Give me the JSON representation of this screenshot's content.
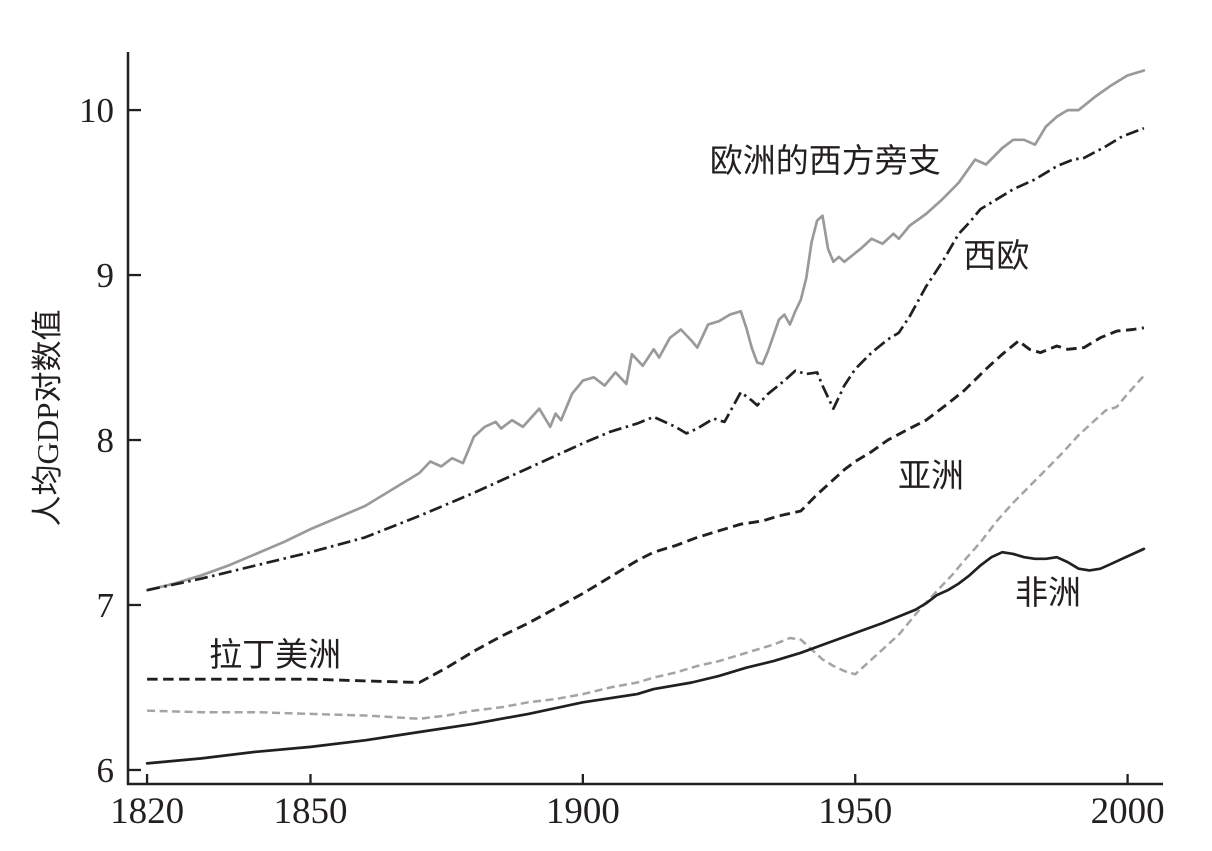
{
  "figure": {
    "background": "#ffffff",
    "ink_color": "#231f20",
    "gray_solid_color": "#9a9a9a",
    "gray_dashed_color": "#a4a4a4"
  },
  "chart_data": {
    "type": "line",
    "title": "",
    "xlabel": "",
    "ylabel": "人均GDP对数值",
    "x_range": [
      1816.5,
      2006.5
    ],
    "y_range": [
      5.915,
      10.352
    ],
    "xticks": [
      1820,
      1850,
      1900,
      1950,
      2000
    ],
    "yticks": [
      6,
      7,
      8,
      9,
      10
    ],
    "grid": false,
    "legend": "inline-labels",
    "series": [
      {
        "id": "western-offshoots",
        "name": "欧洲的西方旁支",
        "color": "#9a9a9a",
        "style": "solid",
        "width": 2.7,
        "points": [
          [
            1820,
            7.09
          ],
          [
            1825,
            7.13
          ],
          [
            1830,
            7.18
          ],
          [
            1835,
            7.24
          ],
          [
            1840,
            7.31
          ],
          [
            1845,
            7.38
          ],
          [
            1850,
            7.46
          ],
          [
            1855,
            7.53
          ],
          [
            1860,
            7.6
          ],
          [
            1865,
            7.7
          ],
          [
            1870,
            7.8
          ],
          [
            1872,
            7.87
          ],
          [
            1874,
            7.84
          ],
          [
            1876,
            7.89
          ],
          [
            1878,
            7.86
          ],
          [
            1880,
            8.02
          ],
          [
            1882,
            8.08
          ],
          [
            1884,
            8.11
          ],
          [
            1885,
            8.07
          ],
          [
            1887,
            8.12
          ],
          [
            1889,
            8.08
          ],
          [
            1892,
            8.19
          ],
          [
            1894,
            8.08
          ],
          [
            1895,
            8.16
          ],
          [
            1896,
            8.12
          ],
          [
            1898,
            8.28
          ],
          [
            1900,
            8.36
          ],
          [
            1902,
            8.38
          ],
          [
            1904,
            8.33
          ],
          [
            1906,
            8.41
          ],
          [
            1908,
            8.34
          ],
          [
            1909,
            8.52
          ],
          [
            1911,
            8.45
          ],
          [
            1913,
            8.55
          ],
          [
            1914,
            8.5
          ],
          [
            1916,
            8.62
          ],
          [
            1918,
            8.67
          ],
          [
            1920,
            8.6
          ],
          [
            1921,
            8.56
          ],
          [
            1923,
            8.7
          ],
          [
            1925,
            8.72
          ],
          [
            1927,
            8.76
          ],
          [
            1929,
            8.78
          ],
          [
            1930,
            8.68
          ],
          [
            1931,
            8.56
          ],
          [
            1932,
            8.47
          ],
          [
            1933,
            8.46
          ],
          [
            1934,
            8.54
          ],
          [
            1936,
            8.73
          ],
          [
            1937,
            8.76
          ],
          [
            1938,
            8.7
          ],
          [
            1939,
            8.78
          ],
          [
            1940,
            8.85
          ],
          [
            1941,
            8.98
          ],
          [
            1942,
            9.2
          ],
          [
            1943,
            9.33
          ],
          [
            1944,
            9.36
          ],
          [
            1945,
            9.16
          ],
          [
            1946,
            9.08
          ],
          [
            1947,
            9.11
          ],
          [
            1948,
            9.08
          ],
          [
            1951,
            9.16
          ],
          [
            1953,
            9.22
          ],
          [
            1955,
            9.19
          ],
          [
            1957,
            9.25
          ],
          [
            1958,
            9.22
          ],
          [
            1960,
            9.3
          ],
          [
            1963,
            9.37
          ],
          [
            1966,
            9.46
          ],
          [
            1969,
            9.56
          ],
          [
            1972,
            9.7
          ],
          [
            1974,
            9.67
          ],
          [
            1977,
            9.77
          ],
          [
            1979,
            9.82
          ],
          [
            1981,
            9.82
          ],
          [
            1983,
            9.79
          ],
          [
            1985,
            9.9
          ],
          [
            1987,
            9.96
          ],
          [
            1989,
            10.0
          ],
          [
            1991,
            10.0
          ],
          [
            1994,
            10.08
          ],
          [
            1997,
            10.15
          ],
          [
            2000,
            10.21
          ],
          [
            2003,
            10.24
          ]
        ]
      },
      {
        "id": "western-europe",
        "name": "西欧",
        "color": "#231f20",
        "style": "dashdot",
        "width": 2.7,
        "points": [
          [
            1820,
            7.09
          ],
          [
            1830,
            7.16
          ],
          [
            1840,
            7.24
          ],
          [
            1850,
            7.32
          ],
          [
            1860,
            7.41
          ],
          [
            1870,
            7.54
          ],
          [
            1880,
            7.68
          ],
          [
            1890,
            7.83
          ],
          [
            1900,
            7.98
          ],
          [
            1905,
            8.05
          ],
          [
            1910,
            8.1
          ],
          [
            1913,
            8.14
          ],
          [
            1917,
            8.08
          ],
          [
            1919,
            8.04
          ],
          [
            1921,
            8.07
          ],
          [
            1924,
            8.13
          ],
          [
            1926,
            8.11
          ],
          [
            1929,
            8.29
          ],
          [
            1931,
            8.24
          ],
          [
            1932,
            8.21
          ],
          [
            1934,
            8.28
          ],
          [
            1937,
            8.36
          ],
          [
            1939,
            8.42
          ],
          [
            1941,
            8.4
          ],
          [
            1943,
            8.41
          ],
          [
            1944,
            8.33
          ],
          [
            1946,
            8.19
          ],
          [
            1948,
            8.33
          ],
          [
            1950,
            8.43
          ],
          [
            1953,
            8.53
          ],
          [
            1956,
            8.61
          ],
          [
            1958,
            8.65
          ],
          [
            1960,
            8.75
          ],
          [
            1963,
            8.93
          ],
          [
            1966,
            9.08
          ],
          [
            1969,
            9.25
          ],
          [
            1971,
            9.32
          ],
          [
            1973,
            9.4
          ],
          [
            1976,
            9.46
          ],
          [
            1979,
            9.52
          ],
          [
            1983,
            9.58
          ],
          [
            1987,
            9.66
          ],
          [
            1990,
            9.7
          ],
          [
            1992,
            9.71
          ],
          [
            1996,
            9.78
          ],
          [
            1999,
            9.84
          ],
          [
            2003,
            9.89
          ]
        ]
      },
      {
        "id": "latin-america",
        "name": "拉丁美洲",
        "color": "#231f20",
        "style": "dashed",
        "width": 2.9,
        "points": [
          [
            1820,
            6.55
          ],
          [
            1835,
            6.55
          ],
          [
            1850,
            6.55
          ],
          [
            1860,
            6.54
          ],
          [
            1870,
            6.53
          ],
          [
            1875,
            6.62
          ],
          [
            1880,
            6.72
          ],
          [
            1885,
            6.81
          ],
          [
            1890,
            6.89
          ],
          [
            1895,
            6.98
          ],
          [
            1900,
            7.07
          ],
          [
            1905,
            7.17
          ],
          [
            1910,
            7.27
          ],
          [
            1913,
            7.32
          ],
          [
            1917,
            7.36
          ],
          [
            1921,
            7.41
          ],
          [
            1925,
            7.45
          ],
          [
            1929,
            7.49
          ],
          [
            1933,
            7.51
          ],
          [
            1936,
            7.54
          ],
          [
            1940,
            7.57
          ],
          [
            1943,
            7.67
          ],
          [
            1945,
            7.73
          ],
          [
            1948,
            7.82
          ],
          [
            1950,
            7.87
          ],
          [
            1953,
            7.93
          ],
          [
            1956,
            8.0
          ],
          [
            1960,
            8.07
          ],
          [
            1963,
            8.12
          ],
          [
            1967,
            8.22
          ],
          [
            1970,
            8.3
          ],
          [
            1974,
            8.43
          ],
          [
            1977,
            8.52
          ],
          [
            1980,
            8.6
          ],
          [
            1982,
            8.55
          ],
          [
            1984,
            8.53
          ],
          [
            1987,
            8.57
          ],
          [
            1989,
            8.55
          ],
          [
            1992,
            8.56
          ],
          [
            1995,
            8.62
          ],
          [
            1998,
            8.66
          ],
          [
            2001,
            8.67
          ],
          [
            2003,
            8.68
          ]
        ]
      },
      {
        "id": "asia",
        "name": "亚洲",
        "color": "#a4a4a4",
        "style": "dashed-short",
        "width": 2.5,
        "points": [
          [
            1820,
            6.36
          ],
          [
            1830,
            6.35
          ],
          [
            1840,
            6.35
          ],
          [
            1850,
            6.34
          ],
          [
            1860,
            6.33
          ],
          [
            1870,
            6.31
          ],
          [
            1875,
            6.33
          ],
          [
            1880,
            6.36
          ],
          [
            1885,
            6.38
          ],
          [
            1890,
            6.41
          ],
          [
            1895,
            6.43
          ],
          [
            1900,
            6.46
          ],
          [
            1905,
            6.5
          ],
          [
            1910,
            6.53
          ],
          [
            1913,
            6.56
          ],
          [
            1917,
            6.59
          ],
          [
            1921,
            6.63
          ],
          [
            1925,
            6.66
          ],
          [
            1929,
            6.7
          ],
          [
            1932,
            6.73
          ],
          [
            1935,
            6.76
          ],
          [
            1938,
            6.8
          ],
          [
            1940,
            6.79
          ],
          [
            1942,
            6.73
          ],
          [
            1944,
            6.67
          ],
          [
            1946,
            6.63
          ],
          [
            1948,
            6.6
          ],
          [
            1950,
            6.58
          ],
          [
            1952,
            6.64
          ],
          [
            1954,
            6.7
          ],
          [
            1956,
            6.76
          ],
          [
            1958,
            6.82
          ],
          [
            1960,
            6.9
          ],
          [
            1962,
            6.98
          ],
          [
            1964,
            7.05
          ],
          [
            1966,
            7.12
          ],
          [
            1968,
            7.19
          ],
          [
            1970,
            7.27
          ],
          [
            1973,
            7.38
          ],
          [
            1976,
            7.51
          ],
          [
            1979,
            7.62
          ],
          [
            1982,
            7.72
          ],
          [
            1985,
            7.82
          ],
          [
            1988,
            7.92
          ],
          [
            1991,
            8.03
          ],
          [
            1993,
            8.09
          ],
          [
            1995,
            8.15
          ],
          [
            1996,
            8.18
          ],
          [
            1998,
            8.2
          ],
          [
            2000,
            8.28
          ],
          [
            2003,
            8.39
          ]
        ]
      },
      {
        "id": "africa",
        "name": "非洲",
        "color": "#231f20",
        "style": "solid",
        "width": 2.7,
        "points": [
          [
            1820,
            6.04
          ],
          [
            1830,
            6.07
          ],
          [
            1840,
            6.11
          ],
          [
            1850,
            6.14
          ],
          [
            1860,
            6.18
          ],
          [
            1870,
            6.23
          ],
          [
            1880,
            6.28
          ],
          [
            1890,
            6.34
          ],
          [
            1900,
            6.41
          ],
          [
            1910,
            6.46
          ],
          [
            1913,
            6.49
          ],
          [
            1920,
            6.53
          ],
          [
            1925,
            6.57
          ],
          [
            1930,
            6.62
          ],
          [
            1935,
            6.66
          ],
          [
            1940,
            6.71
          ],
          [
            1945,
            6.77
          ],
          [
            1950,
            6.83
          ],
          [
            1955,
            6.89
          ],
          [
            1958,
            6.93
          ],
          [
            1961,
            6.97
          ],
          [
            1963,
            7.01
          ],
          [
            1965,
            7.06
          ],
          [
            1967,
            7.09
          ],
          [
            1969,
            7.13
          ],
          [
            1971,
            7.18
          ],
          [
            1973,
            7.24
          ],
          [
            1975,
            7.29
          ],
          [
            1977,
            7.32
          ],
          [
            1979,
            7.31
          ],
          [
            1981,
            7.29
          ],
          [
            1983,
            7.28
          ],
          [
            1985,
            7.28
          ],
          [
            1987,
            7.29
          ],
          [
            1989,
            7.26
          ],
          [
            1991,
            7.22
          ],
          [
            1993,
            7.21
          ],
          [
            1995,
            7.22
          ],
          [
            1997,
            7.25
          ],
          [
            1999,
            7.28
          ],
          [
            2001,
            7.31
          ],
          [
            2003,
            7.34
          ]
        ]
      }
    ],
    "annotations": [
      {
        "id": "label-western-offshoots",
        "text": "欧洲的西方旁支",
        "year": 1944.5,
        "value": 9.685
      },
      {
        "id": "label-western-europe",
        "text": "西欧",
        "year": 1975.9,
        "value": 9.109
      },
      {
        "id": "label-asia",
        "text": "亚洲",
        "year": 1963.9,
        "value": 7.776
      },
      {
        "id": "label-africa",
        "text": "非洲",
        "year": 1985.4,
        "value": 7.067
      },
      {
        "id": "label-latin-america",
        "text": "拉丁美洲",
        "year": 1843.5,
        "value": 6.691
      }
    ]
  }
}
